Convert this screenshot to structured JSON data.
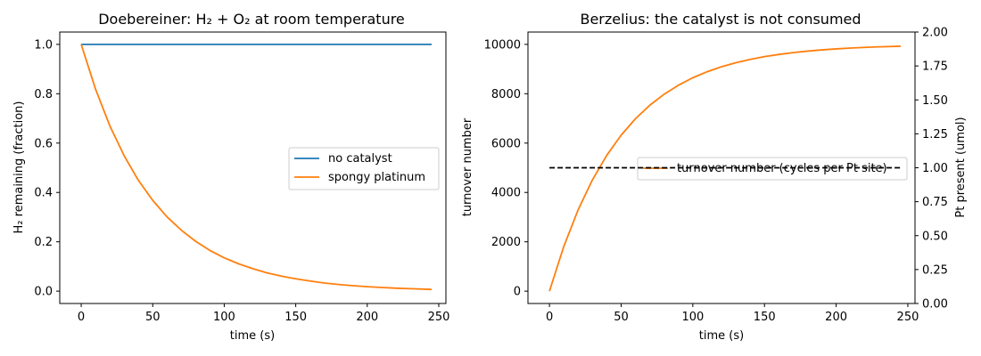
{
  "chart_data": [
    {
      "type": "line",
      "title": "Doebereiner: H₂ + O₂ at room temperature",
      "xlabel": "time (s)",
      "ylabel": "H₂ remaining (fraction)",
      "xlim": [
        -15,
        255
      ],
      "ylim": [
        -0.05,
        1.05
      ],
      "xticks": [
        0,
        50,
        100,
        150,
        200,
        250
      ],
      "yticks": [
        0.0,
        0.2,
        0.4,
        0.6,
        0.8,
        1.0
      ],
      "xtick_labels": [
        "0",
        "50",
        "100",
        "150",
        "200",
        "250"
      ],
      "ytick_labels": [
        "0.0",
        "0.2",
        "0.4",
        "0.6",
        "0.8",
        "1.0"
      ],
      "legend_position": "center-right",
      "grid": false,
      "x": [
        0,
        10,
        20,
        30,
        40,
        50,
        60,
        70,
        80,
        90,
        100,
        110,
        120,
        130,
        140,
        150,
        160,
        170,
        180,
        190,
        200,
        210,
        220,
        230,
        245
      ],
      "series": [
        {
          "name": "no catalyst",
          "color": "#1f77b4",
          "values": [
            1.0,
            1.0,
            1.0,
            1.0,
            1.0,
            1.0,
            1.0,
            1.0,
            1.0,
            1.0,
            1.0,
            1.0,
            1.0,
            1.0,
            1.0,
            1.0,
            1.0,
            1.0,
            1.0,
            1.0,
            1.0,
            1.0,
            1.0,
            1.0,
            1.0
          ]
        },
        {
          "name": "spongy platinum",
          "color": "#ff7f0e",
          "values": [
            1.0,
            0.819,
            0.67,
            0.549,
            0.449,
            0.368,
            0.301,
            0.247,
            0.202,
            0.165,
            0.135,
            0.111,
            0.091,
            0.074,
            0.061,
            0.05,
            0.041,
            0.033,
            0.027,
            0.022,
            0.018,
            0.015,
            0.012,
            0.01,
            0.007
          ]
        }
      ]
    },
    {
      "type": "line",
      "title": "Berzelius: the catalyst is not consumed",
      "xlabel": "time (s)",
      "ylabel": "turnover number",
      "y2label": "Pt present (umol)",
      "xlim": [
        -15,
        255
      ],
      "ylim": [
        -500,
        10500
      ],
      "y2lim": [
        0.0,
        2.0
      ],
      "xticks": [
        0,
        50,
        100,
        150,
        200,
        250
      ],
      "yticks": [
        0,
        2000,
        4000,
        6000,
        8000,
        10000
      ],
      "y2ticks": [
        0.0,
        0.25,
        0.5,
        0.75,
        1.0,
        1.25,
        1.5,
        1.75,
        2.0
      ],
      "xtick_labels": [
        "0",
        "50",
        "100",
        "150",
        "200",
        "250"
      ],
      "ytick_labels": [
        "0",
        "2000",
        "4000",
        "6000",
        "8000",
        "10000"
      ],
      "y2tick_labels": [
        "0.00",
        "0.25",
        "0.50",
        "0.75",
        "1.00",
        "1.25",
        "1.50",
        "1.75",
        "2.00"
      ],
      "legend_position": "center-right",
      "grid": false,
      "x": [
        0,
        10,
        20,
        30,
        40,
        50,
        60,
        70,
        80,
        90,
        100,
        110,
        120,
        130,
        140,
        150,
        160,
        170,
        180,
        190,
        200,
        210,
        220,
        230,
        245
      ],
      "series": [
        {
          "name": "turnover number (cycles per Pt site)",
          "color": "#ff7f0e",
          "axis": "left",
          "values": [
            0,
            1812,
            3297,
            4512,
            5507,
            6321,
            6988,
            7534,
            7981,
            8347,
            8647,
            8892,
            9093,
            9257,
            9392,
            9502,
            9592,
            9666,
            9727,
            9776,
            9817,
            9850,
            9877,
            9899,
            9926
          ]
        },
        {
          "color": "#000000",
          "axis": "right",
          "dashed": true,
          "x": [
            0,
            245
          ],
          "values": [
            1.0,
            1.0
          ]
        }
      ]
    }
  ]
}
